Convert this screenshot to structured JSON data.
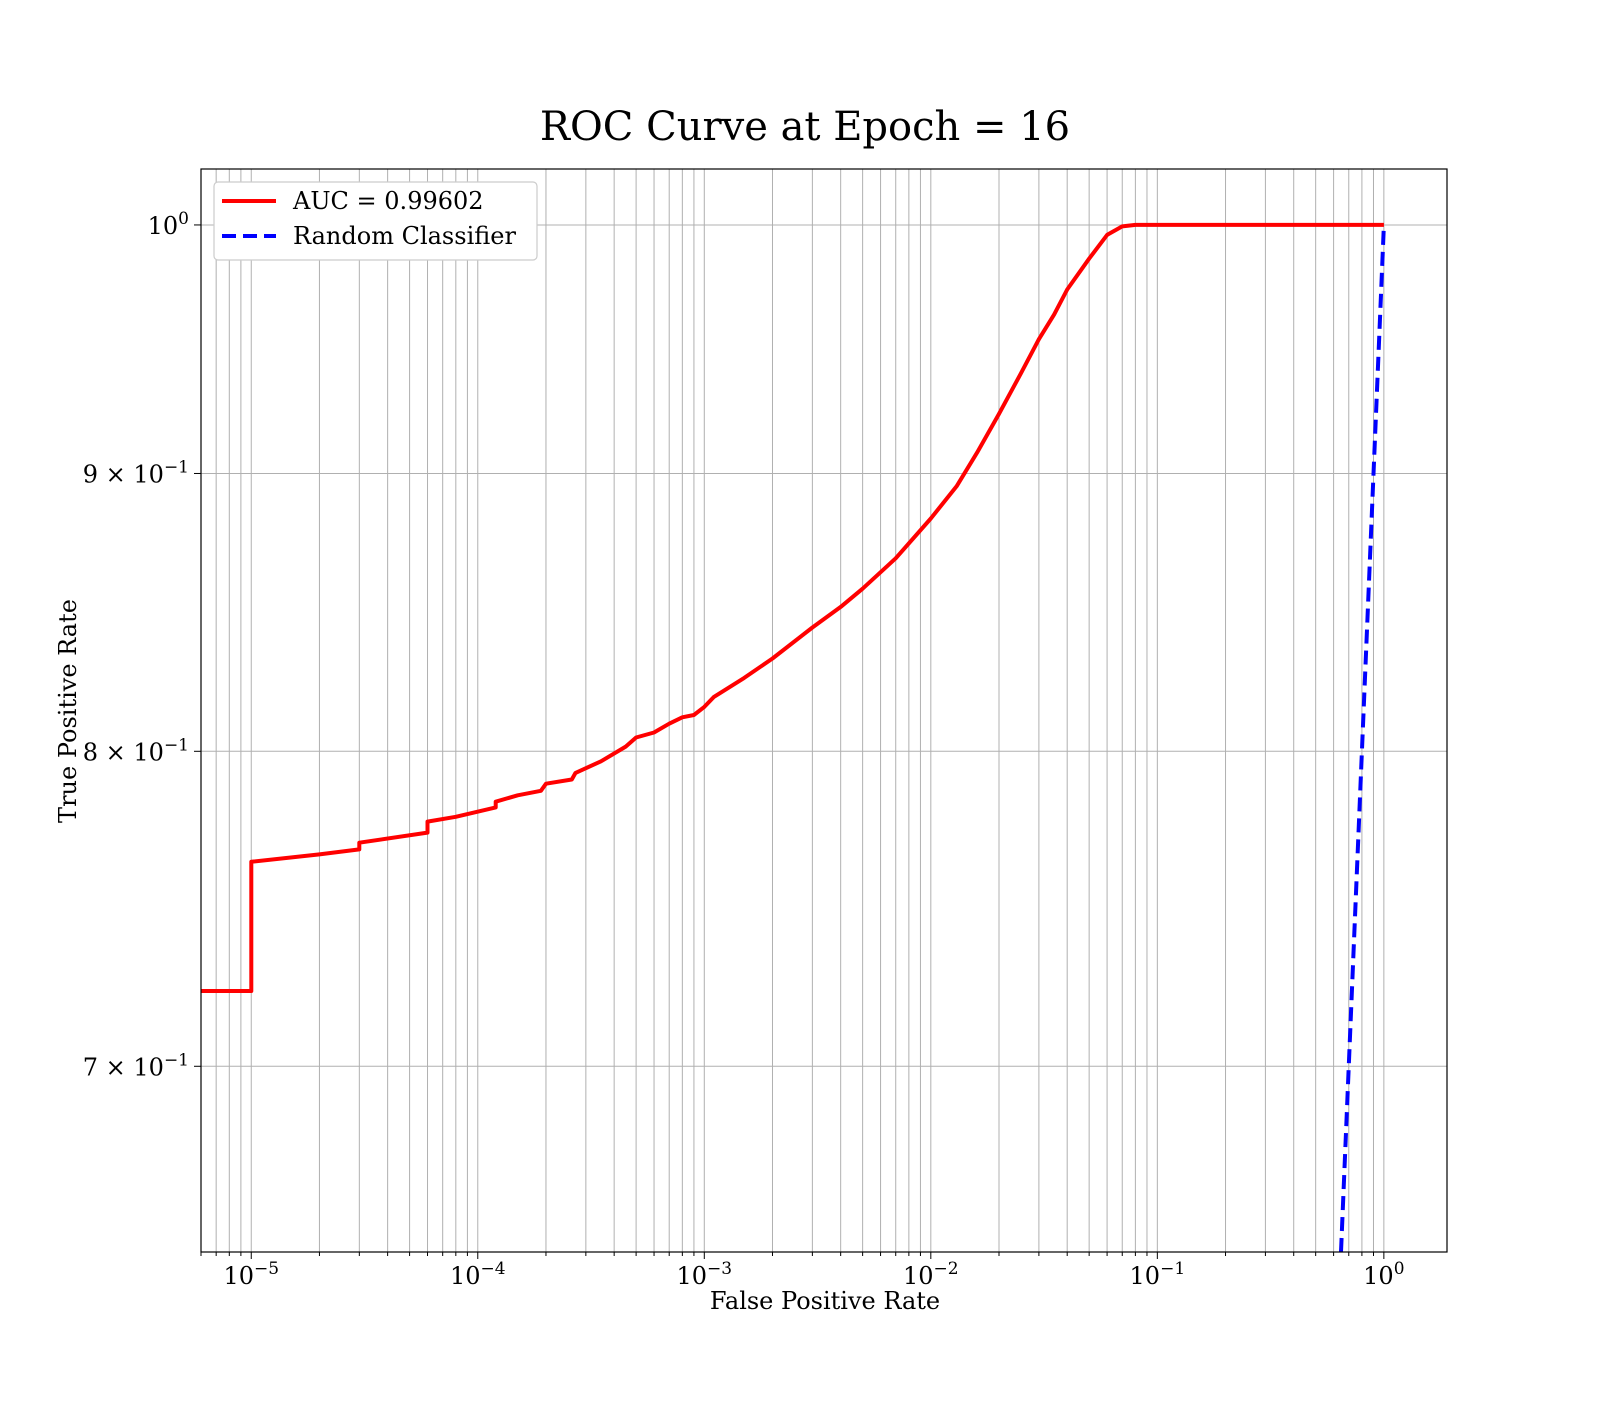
{
  "chart_data": {
    "type": "line",
    "title": "ROC Curve at Epoch = 16",
    "xlabel": "False Positive Rate",
    "ylabel": "True Positive Rate",
    "xscale": "log",
    "yscale": "log",
    "xlim": [
      6e-06,
      1.9
    ],
    "ylim": [
      0.647,
      1.024
    ],
    "grid": "on (major and minor, both axes)",
    "legend_position": "upper left",
    "x_tick_labels": [
      {
        "value": 1e-05,
        "base": "10",
        "exp": "−5"
      },
      {
        "value": 0.0001,
        "base": "10",
        "exp": "−4"
      },
      {
        "value": 0.001,
        "base": "10",
        "exp": "−3"
      },
      {
        "value": 0.01,
        "base": "10",
        "exp": "−2"
      },
      {
        "value": 0.1,
        "base": "10",
        "exp": "−1"
      },
      {
        "value": 1,
        "base": "10",
        "exp": "0"
      }
    ],
    "y_tick_labels": [
      {
        "value": 1.0,
        "base": "10",
        "exp": "0"
      },
      {
        "value": 0.9,
        "base": "9 × 10",
        "exp": "−1"
      },
      {
        "value": 0.8,
        "base": "8 × 10",
        "exp": "−1"
      },
      {
        "value": 0.7,
        "base": "7 × 10",
        "exp": "−1"
      }
    ],
    "series": [
      {
        "name": "AUC = 0.99602",
        "color": "#ff0000",
        "dash": "solid",
        "points": [
          [
            6e-06,
            0.7227
          ],
          [
            1e-05,
            0.7227
          ],
          [
            1e-05,
            0.7634
          ],
          [
            2e-05,
            0.7658
          ],
          [
            3e-05,
            0.7674
          ],
          [
            3e-05,
            0.7696
          ],
          [
            6e-05,
            0.7729
          ],
          [
            6e-05,
            0.7765
          ],
          [
            8e-05,
            0.7781
          ],
          [
            0.00012,
            0.7812
          ],
          [
            0.00012,
            0.7831
          ],
          [
            0.00015,
            0.7852
          ],
          [
            0.00019,
            0.7867
          ],
          [
            0.0002,
            0.7891
          ],
          [
            0.00026,
            0.7905
          ],
          [
            0.00027,
            0.7927
          ],
          [
            0.00035,
            0.7966
          ],
          [
            0.00045,
            0.8016
          ],
          [
            0.0005,
            0.8047
          ],
          [
            0.0006,
            0.8064
          ],
          [
            0.0007,
            0.8094
          ],
          [
            0.0008,
            0.8116
          ],
          [
            0.0009,
            0.8124
          ],
          [
            0.001,
            0.8152
          ],
          [
            0.0011,
            0.8186
          ],
          [
            0.0015,
            0.8253
          ],
          [
            0.002,
            0.8321
          ],
          [
            0.003,
            0.8431
          ],
          [
            0.004,
            0.8505
          ],
          [
            0.005,
            0.8571
          ],
          [
            0.007,
            0.8682
          ],
          [
            0.01,
            0.883
          ],
          [
            0.013,
            0.8951
          ],
          [
            0.016,
            0.908
          ],
          [
            0.02,
            0.923
          ],
          [
            0.025,
            0.9391
          ],
          [
            0.03,
            0.9527
          ],
          [
            0.035,
            0.9627
          ],
          [
            0.04,
            0.973
          ],
          [
            0.05,
            0.9858
          ],
          [
            0.06,
            0.9958
          ],
          [
            0.07,
            0.9994
          ],
          [
            0.08,
            1.0
          ],
          [
            1.0,
            1.0
          ]
        ]
      },
      {
        "name": "Random Classifier",
        "color": "#0000ff",
        "dash": "dashed",
        "points": [
          [
            0.647,
            0.647
          ],
          [
            1.0,
            1.0
          ]
        ]
      }
    ]
  }
}
